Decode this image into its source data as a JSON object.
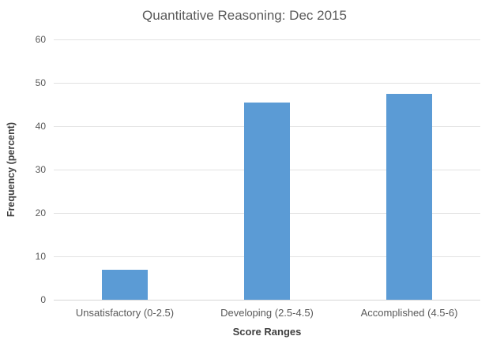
{
  "chart_data": {
    "type": "bar",
    "title": "Quantitative Reasoning: Dec 2015",
    "categories": [
      "Unsatisfactory (0-2.5)",
      "Developing (2.5-4.5)",
      "Accomplished (4.5-6)"
    ],
    "values": [
      7,
      45.5,
      47.5
    ],
    "xlabel": "Score Ranges",
    "ylabel": "Frequency (percent)",
    "ylim": [
      0,
      60
    ],
    "yticks": [
      0,
      10,
      20,
      30,
      40,
      50,
      60
    ],
    "grid": true,
    "legend_position": "none",
    "colors": {
      "bar": "#5b9bd5",
      "title_text": "#595959",
      "tick_label_text": "#595959",
      "axis_title_text": "#404040",
      "gridline": "#e2e2e2",
      "axis_line": "#d6d6d6",
      "background": "#ffffff"
    }
  }
}
